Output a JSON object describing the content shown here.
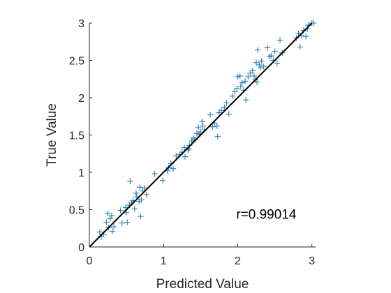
{
  "chart_data": {
    "type": "scatter",
    "title": "",
    "xlabel": "Predicted Value",
    "ylabel": "True Value",
    "xlim": [
      0,
      3.05
    ],
    "ylim": [
      0,
      3.0
    ],
    "xticks": [
      "0",
      "1",
      "2",
      "3"
    ],
    "yticks": [
      "0",
      "0.5",
      "1",
      "1.5",
      "2",
      "2.5",
      "3"
    ],
    "grid": false,
    "legend": "none",
    "marker": "plus",
    "marker_color": "#2b7bb0",
    "fit_line_color": "#000000",
    "annotation": "r=0.99014",
    "fit_line": {
      "x": [
        0,
        3.0
      ],
      "y": [
        0,
        3.0
      ]
    },
    "points": [
      [
        0.14,
        0.2
      ],
      [
        0.16,
        0.14
      ],
      [
        0.19,
        0.17
      ],
      [
        0.23,
        0.33
      ],
      [
        0.25,
        0.45
      ],
      [
        0.26,
        0.26
      ],
      [
        0.28,
        0.38
      ],
      [
        0.3,
        0.42
      ],
      [
        0.31,
        0.21
      ],
      [
        0.33,
        0.27
      ],
      [
        0.42,
        0.49
      ],
      [
        0.44,
        0.32
      ],
      [
        0.49,
        0.53
      ],
      [
        0.5,
        0.46
      ],
      [
        0.51,
        0.33
      ],
      [
        0.54,
        0.56
      ],
      [
        0.55,
        0.88
      ],
      [
        0.57,
        0.59
      ],
      [
        0.59,
        0.62
      ],
      [
        0.61,
        0.51
      ],
      [
        0.63,
        0.72
      ],
      [
        0.64,
        0.67
      ],
      [
        0.67,
        0.61
      ],
      [
        0.68,
        0.8
      ],
      [
        0.7,
        0.63
      ],
      [
        0.72,
        0.75
      ],
      [
        0.74,
        0.79
      ],
      [
        0.69,
        0.41
      ],
      [
        0.77,
        0.7
      ],
      [
        0.88,
        0.98
      ],
      [
        0.99,
        0.89
      ],
      [
        1.05,
        1.02
      ],
      [
        1.07,
        1.06
      ],
      [
        1.1,
        1.12
      ],
      [
        1.13,
        1.05
      ],
      [
        1.17,
        1.22
      ],
      [
        1.22,
        1.24
      ],
      [
        1.25,
        1.27
      ],
      [
        1.28,
        1.33
      ],
      [
        1.29,
        1.21
      ],
      [
        1.33,
        1.3
      ],
      [
        1.34,
        1.32
      ],
      [
        1.35,
        1.36
      ],
      [
        1.38,
        1.42
      ],
      [
        1.4,
        1.46
      ],
      [
        1.42,
        1.44
      ],
      [
        1.45,
        1.52
      ],
      [
        1.47,
        1.6
      ],
      [
        1.48,
        1.51
      ],
      [
        1.5,
        1.54
      ],
      [
        1.52,
        1.68
      ],
      [
        1.53,
        1.62
      ],
      [
        1.55,
        1.57
      ],
      [
        1.63,
        1.77
      ],
      [
        1.66,
        1.61
      ],
      [
        1.69,
        1.66
      ],
      [
        1.72,
        1.62
      ],
      [
        1.73,
        1.48
      ],
      [
        1.75,
        1.8
      ],
      [
        1.78,
        1.83
      ],
      [
        1.82,
        1.87
      ],
      [
        1.85,
        1.93
      ],
      [
        1.88,
        1.78
      ],
      [
        1.93,
        2.02
      ],
      [
        1.96,
        2.08
      ],
      [
        1.99,
        2.12
      ],
      [
        2.0,
        2.28
      ],
      [
        2.03,
        2.29
      ],
      [
        2.04,
        2.15
      ],
      [
        2.06,
        2.2
      ],
      [
        2.08,
        2.1
      ],
      [
        2.1,
        2.22
      ],
      [
        2.11,
        1.97
      ],
      [
        2.14,
        2.28
      ],
      [
        2.17,
        2.33
      ],
      [
        2.2,
        2.36
      ],
      [
        2.22,
        2.29
      ],
      [
        2.24,
        2.24
      ],
      [
        2.25,
        2.47
      ],
      [
        2.26,
        2.21
      ],
      [
        2.27,
        2.64
      ],
      [
        2.29,
        2.44
      ],
      [
        2.31,
        2.4
      ],
      [
        2.32,
        2.49
      ],
      [
        2.35,
        2.42
      ],
      [
        2.4,
        2.67
      ],
      [
        2.43,
        2.55
      ],
      [
        2.45,
        2.56
      ],
      [
        2.48,
        2.5
      ],
      [
        2.5,
        2.62
      ],
      [
        2.53,
        2.46
      ],
      [
        2.57,
        2.77
      ],
      [
        2.6,
        2.6
      ],
      [
        2.79,
        2.8
      ],
      [
        2.82,
        2.86
      ],
      [
        2.84,
        2.68
      ],
      [
        2.86,
        2.83
      ],
      [
        2.89,
        2.9
      ],
      [
        2.92,
        2.82
      ],
      [
        2.94,
        2.92
      ],
      [
        2.95,
        2.97
      ],
      [
        3.0,
        3.0
      ],
      [
        3.02,
        3.0
      ]
    ]
  }
}
